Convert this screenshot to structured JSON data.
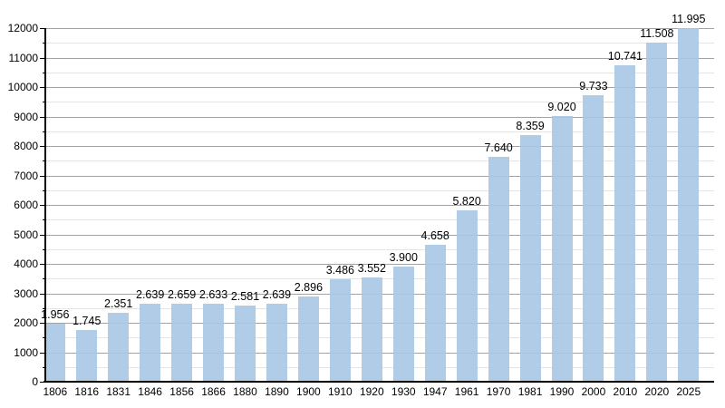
{
  "chart_data": {
    "type": "bar",
    "title": "",
    "xlabel": "",
    "ylabel": "",
    "categories": [
      "1806",
      "1816",
      "1831",
      "1846",
      "1856",
      "1866",
      "1880",
      "1890",
      "1900",
      "1910",
      "1920",
      "1930",
      "1947",
      "1961",
      "1970",
      "1981",
      "1990",
      "2000",
      "2010",
      "2020",
      "2025"
    ],
    "values": [
      1956,
      1745,
      2351,
      2639,
      2659,
      2633,
      2581,
      2639,
      2896,
      3486,
      3552,
      3900,
      4658,
      5820,
      7640,
      8359,
      9020,
      9733,
      10741,
      11508,
      11995
    ],
    "value_labels": [
      "1.956",
      "1.745",
      "2.351",
      "2.639",
      "2.659",
      "2.633",
      "2.581",
      "2.639",
      "2.896",
      "3.486",
      "3.552",
      "3.900",
      "4.658",
      "5.820",
      "7.640",
      "8.359",
      "9.020",
      "9.733",
      "10.741",
      "11.508",
      "11.995"
    ],
    "y_tick_labels": [
      "0",
      "1000",
      "2000",
      "3000",
      "4000",
      "5000",
      "6000",
      "7000",
      "8000",
      "9000",
      "10000",
      "11000",
      "12000"
    ],
    "ylim": [
      0,
      12000
    ],
    "y_major_step": 1000,
    "y_minor_step": 500,
    "grid": "on",
    "legend": "none",
    "colors": {
      "bar_fill": "#a9c7e3",
      "grid_major": "#a3a3a3",
      "grid_minor": "#e4e4e4",
      "axis": "#000000",
      "text": "#000000",
      "background": "#ffffff"
    }
  }
}
